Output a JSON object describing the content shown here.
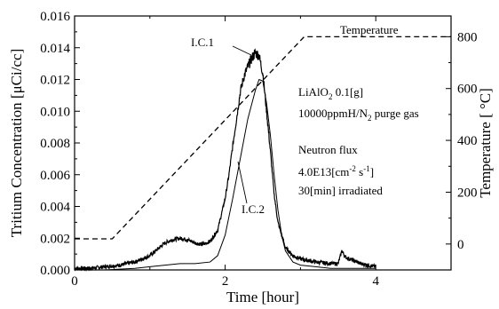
{
  "chart_data": {
    "type": "line",
    "xlabel": "Time [hour]",
    "ylabel": "Tritium Concentration [μCi/cc]",
    "ylabel_right": "Temperature [ °C]",
    "xlim": [
      0,
      5
    ],
    "ylim": [
      0,
      0.016
    ],
    "ylim_right": [
      -100,
      880
    ],
    "x_ticks": [
      "0",
      "2",
      "4"
    ],
    "y_ticks": [
      "0.000",
      "0.002",
      "0.004",
      "0.006",
      "0.008",
      "0.010",
      "0.012",
      "0.014",
      "0.016"
    ],
    "y_right_ticks": [
      "0",
      "200",
      "400",
      "600",
      "800"
    ],
    "grid": false,
    "series": [
      {
        "name": "I.C.1",
        "axis": "left",
        "style": "thick-noisy",
        "x": [
          0,
          0.2,
          0.4,
          0.6,
          0.8,
          1.0,
          1.1,
          1.2,
          1.3,
          1.4,
          1.5,
          1.6,
          1.7,
          1.8,
          1.9,
          2.0,
          2.05,
          2.1,
          2.15,
          2.2,
          2.25,
          2.3,
          2.35,
          2.4,
          2.45,
          2.5,
          2.55,
          2.6,
          2.65,
          2.7,
          2.8,
          2.9,
          3.0,
          3.2,
          3.4,
          3.5,
          3.55,
          3.6,
          3.7,
          3.8,
          4.0
        ],
        "y": [
          0.0001,
          0.0001,
          0.0002,
          0.0003,
          0.0005,
          0.0009,
          0.0013,
          0.0017,
          0.0019,
          0.002,
          0.0019,
          0.0017,
          0.0016,
          0.0018,
          0.0025,
          0.0045,
          0.006,
          0.0078,
          0.0095,
          0.0112,
          0.0122,
          0.0128,
          0.0133,
          0.0137,
          0.0135,
          0.0124,
          0.01,
          0.0075,
          0.0048,
          0.003,
          0.0014,
          0.0009,
          0.0007,
          0.0005,
          0.0004,
          0.0004,
          0.0012,
          0.0008,
          0.0006,
          0.0004,
          0.0002
        ]
      },
      {
        "name": "I.C.2",
        "axis": "left",
        "style": "thin",
        "x": [
          0,
          0.4,
          0.8,
          1.0,
          1.2,
          1.4,
          1.6,
          1.8,
          1.9,
          2.0,
          2.1,
          2.2,
          2.3,
          2.4,
          2.45,
          2.5,
          2.55,
          2.6,
          2.65,
          2.7,
          2.75,
          2.8,
          2.9,
          3.0,
          3.2,
          3.4,
          3.6,
          4.0
        ],
        "y": [
          0.0,
          0.0,
          0.0001,
          0.0002,
          0.0003,
          0.0004,
          0.0004,
          0.0005,
          0.0009,
          0.0022,
          0.0045,
          0.007,
          0.0095,
          0.0113,
          0.012,
          0.0119,
          0.0105,
          0.0085,
          0.006,
          0.0038,
          0.0022,
          0.0012,
          0.0005,
          0.0003,
          0.0002,
          0.0001,
          0.0001,
          0.0001
        ]
      },
      {
        "name": "Temperature",
        "axis": "right",
        "style": "dashed",
        "x": [
          0,
          0.5,
          3.05,
          5.0
        ],
        "y": [
          20,
          20,
          800,
          800
        ]
      }
    ],
    "annotations": {
      "label_ic1": "I.C.1",
      "label_ic2": "I.C.2",
      "label_temperature": "Temperature",
      "material": "LiAlO",
      "material_sub": "2",
      "material_mass": " 0.1[g]",
      "purge_prefix": "10000ppmH/N",
      "purge_sub": "2",
      "purge_suffix": " purge gas",
      "neutron_flux": "Neutron flux",
      "flux_value": "4.0E13[cm",
      "flux_exp1": "-2",
      "flux_mid": " s",
      "flux_exp2": "-1",
      "flux_end": "]",
      "irradiated": "30[min] irradiated"
    }
  }
}
